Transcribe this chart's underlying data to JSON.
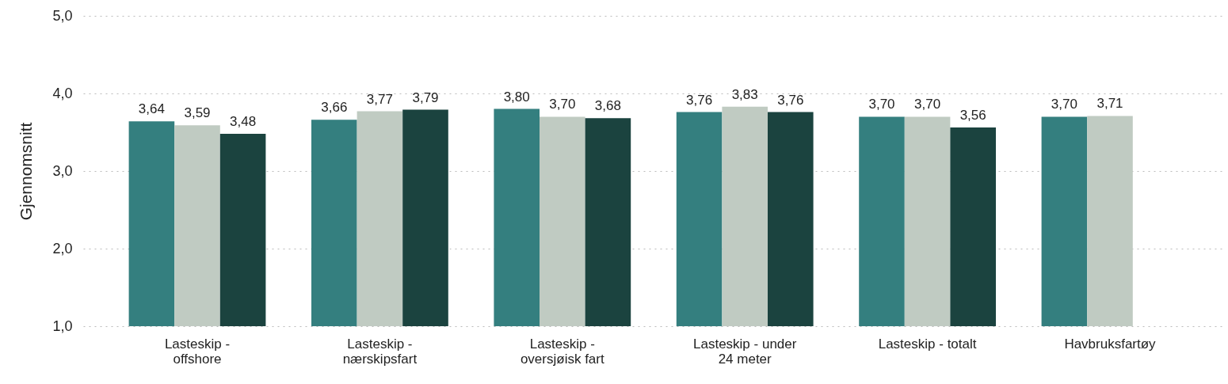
{
  "chart_data": {
    "type": "bar",
    "ylabel": "Gjennomsnitt",
    "categories": [
      "Lasteskip - offshore",
      "Lasteskip - nærskipsfart",
      "Lasteskip - oversjøisk fart",
      "Lasteskip - under 24 meter",
      "Lasteskip - totalt",
      "Havbruksfartøy"
    ],
    "series": [
      {
        "color": "#347f7f",
        "values": [
          3.64,
          3.66,
          3.8,
          3.76,
          3.7,
          3.7
        ],
        "value_labels": [
          "3,64",
          "3,66",
          "3,80",
          "3,76",
          "3,70",
          "3,70"
        ]
      },
      {
        "color": "#c0cbc2",
        "values": [
          3.59,
          3.77,
          3.7,
          3.83,
          3.7,
          3.71
        ],
        "value_labels": [
          "3,59",
          "3,77",
          "3,70",
          "3,83",
          "3,70",
          "3,71"
        ]
      },
      {
        "color": "#1b433f",
        "values": [
          3.48,
          3.79,
          3.68,
          3.76,
          3.56,
          null
        ],
        "value_labels": [
          "3,48",
          "3,79",
          "3,68",
          "3,76",
          "3,56",
          null
        ]
      }
    ],
    "ylim": [
      1,
      5
    ],
    "yticks": [
      {
        "value": 1,
        "label": "1,0"
      },
      {
        "value": 2,
        "label": "2,0"
      },
      {
        "value": 3,
        "label": "3,0"
      },
      {
        "value": 4,
        "label": "4,0"
      },
      {
        "value": 5,
        "label": "5,0"
      }
    ],
    "grid": "y"
  }
}
